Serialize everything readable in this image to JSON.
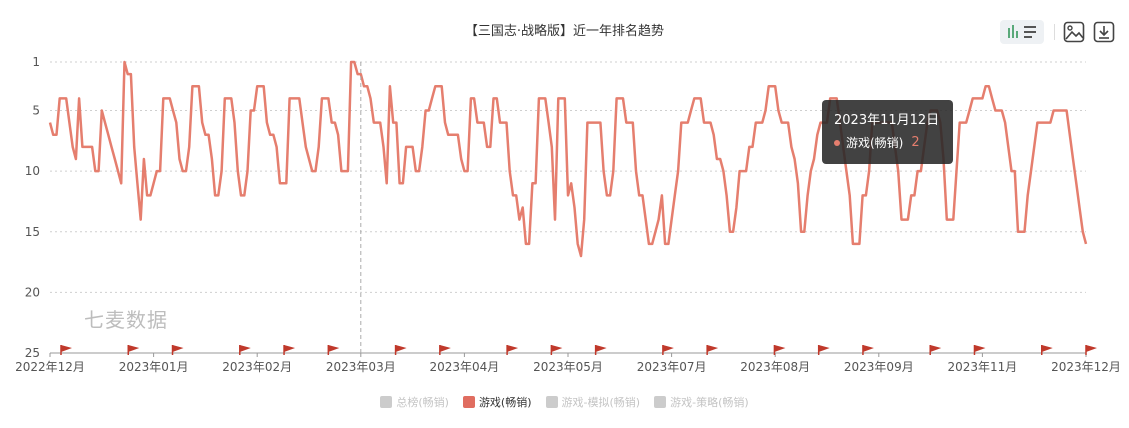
{
  "title": "【三国志·战略版】近一年排名趋势",
  "watermark": "七麦数据",
  "tooltip": {
    "date": "2023年11月12日",
    "series": "游戏(畅销)",
    "value": "2"
  },
  "legend": [
    {
      "label": "总榜(畅销)",
      "color": "#cccccc",
      "active": false
    },
    {
      "label": "游戏(畅销)",
      "color": "#e06d60",
      "active": true
    },
    {
      "label": "游戏-模拟(畅销)",
      "color": "#cccccc",
      "active": false
    },
    {
      "label": "游戏-策略(畅销)",
      "color": "#cccccc",
      "active": false
    }
  ],
  "toolbar": {
    "icons": [
      "bar-line-switch-icon",
      "save-image-icon",
      "download-icon"
    ]
  },
  "chart_data": {
    "type": "line",
    "title": "【三国志·战略版】近一年排名趋势",
    "y_axis": {
      "inverted": true,
      "min": 1,
      "max": 25,
      "ticks": [
        1,
        5,
        10,
        15,
        20,
        25
      ]
    },
    "x_axis": {
      "ticks": [
        "2022年12月",
        "2023年01月",
        "2023年02月",
        "2023年03月",
        "2023年04月",
        "2023年05月",
        "2023年07月",
        "2023年08月",
        "2023年09月",
        "2023年11月",
        "2023年12月"
      ]
    },
    "grid": true,
    "line_color": "#e57e6e",
    "series": [
      {
        "name": "游戏(畅销)",
        "values": [
          6,
          7,
          7,
          4,
          4,
          4,
          6,
          8,
          9,
          4,
          8,
          8,
          8,
          8,
          10,
          10,
          5,
          6,
          7,
          8,
          9,
          10,
          11,
          1,
          2,
          2,
          8,
          11,
          14,
          9,
          12,
          12,
          11,
          10,
          10,
          4,
          4,
          4,
          5,
          6,
          9,
          10,
          10,
          8,
          3,
          3,
          3,
          6,
          7,
          7,
          9,
          12,
          12,
          10,
          4,
          4,
          4,
          6,
          10,
          12,
          12,
          10,
          5,
          5,
          3,
          3,
          3,
          6,
          7,
          7,
          8,
          11,
          11,
          11,
          4,
          4,
          4,
          4,
          6,
          8,
          9,
          10,
          10,
          8,
          4,
          4,
          4,
          6,
          6,
          7,
          10,
          10,
          10,
          1,
          1,
          2,
          2,
          3,
          3,
          4,
          6,
          6,
          6,
          8,
          11,
          3,
          6,
          6,
          11,
          11,
          8,
          8,
          8,
          10,
          10,
          8,
          5,
          5,
          4,
          3,
          3,
          3,
          6,
          7,
          7,
          7,
          7,
          9,
          10,
          10,
          4,
          4,
          6,
          6,
          6,
          8,
          8,
          4,
          4,
          6,
          6,
          6,
          10,
          12,
          12,
          14,
          13,
          16,
          16,
          11,
          11,
          4,
          4,
          4,
          6,
          8,
          14,
          4,
          4,
          4,
          12,
          11,
          13,
          16,
          17,
          14,
          6,
          6,
          6,
          6,
          6,
          10,
          12,
          12,
          10,
          4,
          4,
          4,
          6,
          6,
          6,
          10,
          12,
          12,
          14,
          16,
          16,
          15,
          14,
          12,
          16,
          16,
          14,
          12,
          10,
          6,
          6,
          6,
          5,
          4,
          4,
          4,
          6,
          6,
          6,
          7,
          9,
          9,
          10,
          12,
          15,
          15,
          13,
          10,
          10,
          10,
          8,
          8,
          6,
          6,
          6,
          5,
          3,
          3,
          3,
          5,
          6,
          6,
          6,
          8,
          9,
          11,
          15,
          15,
          12,
          10,
          9,
          7,
          6,
          6,
          6,
          4,
          4,
          4,
          6,
          8,
          10,
          12,
          16,
          16,
          16,
          12,
          12,
          10,
          6,
          6,
          6,
          6,
          6,
          6,
          6,
          8,
          10,
          14,
          14,
          14,
          12,
          12,
          10,
          10,
          8,
          6,
          5,
          5,
          5,
          6,
          9,
          14,
          14,
          14,
          10,
          6,
          6,
          6,
          5,
          4,
          4,
          4,
          4,
          3,
          3,
          4,
          5,
          5,
          5,
          6,
          8,
          10,
          10,
          15,
          15,
          15,
          12,
          10,
          8,
          6,
          6,
          6,
          6,
          6,
          5,
          5,
          5,
          5,
          5,
          7,
          9,
          11,
          13,
          15,
          16
        ],
        "highlight": {
          "label": "2023年11月12日",
          "value": 2
        }
      }
    ],
    "event_markers": 20
  }
}
